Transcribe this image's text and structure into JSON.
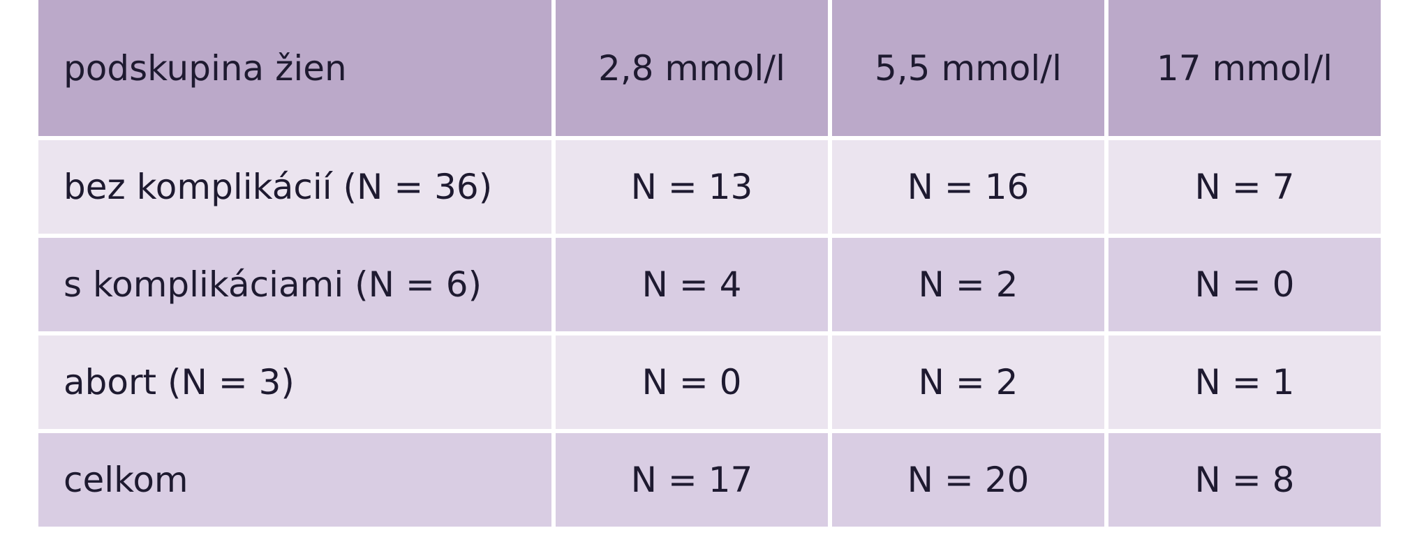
{
  "table": {
    "header": [
      "podskupina žien",
      "2,8 mmol/l",
      "5,5 mmol/l",
      "17 mmol/l"
    ],
    "rows": [
      [
        "bez komplikácií (N = 36)",
        "N = 13",
        "N = 16",
        "N = 7"
      ],
      [
        "s komplikáciami (N = 6)",
        "N = 4",
        "N = 2",
        "N = 0"
      ],
      [
        "abort (N = 3)",
        "N = 0",
        "N = 2",
        "N = 1"
      ],
      [
        "celkom",
        "N = 17",
        "N = 20",
        "N = 8"
      ]
    ]
  }
}
